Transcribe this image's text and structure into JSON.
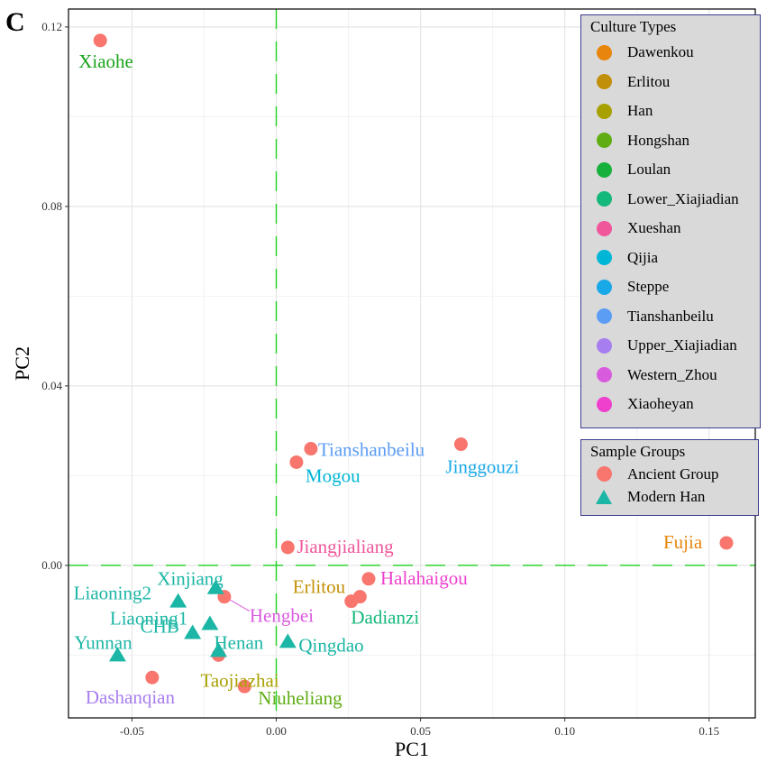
{
  "panel_label": "C",
  "chart_data": {
    "type": "scatter",
    "title": "",
    "xlabel": "PC1",
    "ylabel": "PC2",
    "xlim": [
      -0.072,
      0.166
    ],
    "ylim": [
      -0.034,
      0.124
    ],
    "xticks": [
      -0.05,
      0.0,
      0.05,
      0.1,
      0.15
    ],
    "xtick_labels": [
      "-0.05",
      "0.00",
      "0.05",
      "0.10",
      "0.15"
    ],
    "yticks": [
      0.0,
      0.04,
      0.08,
      0.12
    ],
    "ytick_labels": [
      "0.00",
      "0.04",
      "0.08",
      "0.12"
    ],
    "grid": true,
    "reference_lines": {
      "x": 0.0,
      "y": 0.0,
      "color": "#1ed11e"
    },
    "marker_colors": {
      "Ancient Group": "#f8766d",
      "Modern Han": "#1bb6a5"
    },
    "points": [
      {
        "label": "Xiaohe",
        "x": -0.061,
        "y": 0.117,
        "group": "Ancient Group",
        "culture": "Loulan",
        "color": "#1aa31a"
      },
      {
        "label": "Tianshanbeilu",
        "x": 0.012,
        "y": 0.026,
        "group": "Ancient Group",
        "culture": "Tianshanbeilu",
        "color": "#5b9cf5"
      },
      {
        "label": "Mogou",
        "x": 0.007,
        "y": 0.023,
        "group": "Ancient Group",
        "culture": "Qijia",
        "color": "#00b6d6"
      },
      {
        "label": "Jinggouzi",
        "x": 0.064,
        "y": 0.027,
        "group": "Ancient Group",
        "culture": "Steppe",
        "color": "#1aa9e8"
      },
      {
        "label": "Jiangjialiang",
        "x": 0.004,
        "y": 0.004,
        "group": "Ancient Group",
        "culture": "Xueshan",
        "color": "#f0569a"
      },
      {
        "label": "Fujia",
        "x": 0.156,
        "y": 0.005,
        "group": "Ancient Group",
        "culture": "Dawenkou",
        "color": "#e8850c"
      },
      {
        "label": "Halahaigou",
        "x": 0.032,
        "y": -0.003,
        "group": "Ancient Group",
        "culture": "Xiaoheyan",
        "color": "#ee40cd"
      },
      {
        "label": "Erlitou",
        "x": 0.026,
        "y": -0.008,
        "group": "Ancient Group",
        "culture": "Erlitou",
        "color": "#c29008"
      },
      {
        "label": "Dadianzi",
        "x": 0.029,
        "y": -0.007,
        "group": "Ancient Group",
        "culture": "Lower_Xiajiadian",
        "color": "#14b87a"
      },
      {
        "label": "Hengbei",
        "x": -0.018,
        "y": -0.007,
        "group": "Ancient Group",
        "culture": "Western_Zhou",
        "color": "#d85bde"
      },
      {
        "label": "Taojiazhai",
        "x": -0.02,
        "y": -0.02,
        "group": "Ancient Group",
        "culture": "Han",
        "color": "#a8a000"
      },
      {
        "label": "Niuheliang",
        "x": -0.011,
        "y": -0.027,
        "group": "Ancient Group",
        "culture": "Hongshan",
        "color": "#5fad12"
      },
      {
        "label": "Dashanqian",
        "x": -0.043,
        "y": -0.025,
        "group": "Ancient Group",
        "culture": "Upper_Xiajiadian",
        "color": "#a77ef0"
      },
      {
        "label": "Xinjiang",
        "x": -0.021,
        "y": -0.005,
        "group": "Modern Han",
        "color": "#1bb6a5"
      },
      {
        "label": "Liaoning2",
        "x": -0.034,
        "y": -0.008,
        "group": "Modern Han",
        "color": "#1bb6a5"
      },
      {
        "label": "Liaoning1",
        "x": -0.023,
        "y": -0.013,
        "group": "Modern Han",
        "color": "#1bb6a5"
      },
      {
        "label": "Henan",
        "x": -0.02,
        "y": -0.019,
        "group": "Modern Han",
        "color": "#1bb6a5"
      },
      {
        "label": "CHB",
        "x": -0.029,
        "y": -0.015,
        "group": "Modern Han",
        "color": "#1bb6a5"
      },
      {
        "label": "Qingdao",
        "x": 0.004,
        "y": -0.017,
        "group": "Modern Han",
        "color": "#1bb6a5"
      },
      {
        "label": "Yunnan",
        "x": -0.055,
        "y": -0.02,
        "group": "Modern Han",
        "color": "#1bb6a5"
      }
    ]
  },
  "legend_culture": {
    "title": "Culture Types",
    "items": [
      {
        "label": "Dawenkou",
        "color": "#e8850c"
      },
      {
        "label": "Erlitou",
        "color": "#c29008"
      },
      {
        "label": "Han",
        "color": "#a8a000"
      },
      {
        "label": "Hongshan",
        "color": "#5fad12"
      },
      {
        "label": "Loulan",
        "color": "#18b03c"
      },
      {
        "label": "Lower_Xiajiadian",
        "color": "#14b87a"
      },
      {
        "label": "Xueshan",
        "color": "#f0569a"
      },
      {
        "label": "Qijia",
        "color": "#00b6d6"
      },
      {
        "label": "Steppe",
        "color": "#1aa9e8"
      },
      {
        "label": "Tianshanbeilu",
        "color": "#5b9cf5"
      },
      {
        "label": "Upper_Xiajiadian",
        "color": "#a77ef0"
      },
      {
        "label": "Western_Zhou",
        "color": "#d85bde"
      },
      {
        "label": "Xiaoheyan",
        "color": "#ee40cd"
      }
    ]
  },
  "legend_groups": {
    "title": "Sample Groups",
    "items": [
      {
        "label": "Ancient Group",
        "shape": "circle",
        "color": "#f8766d"
      },
      {
        "label": "Modern Han",
        "shape": "triangle",
        "color": "#1bb6a5"
      }
    ]
  }
}
